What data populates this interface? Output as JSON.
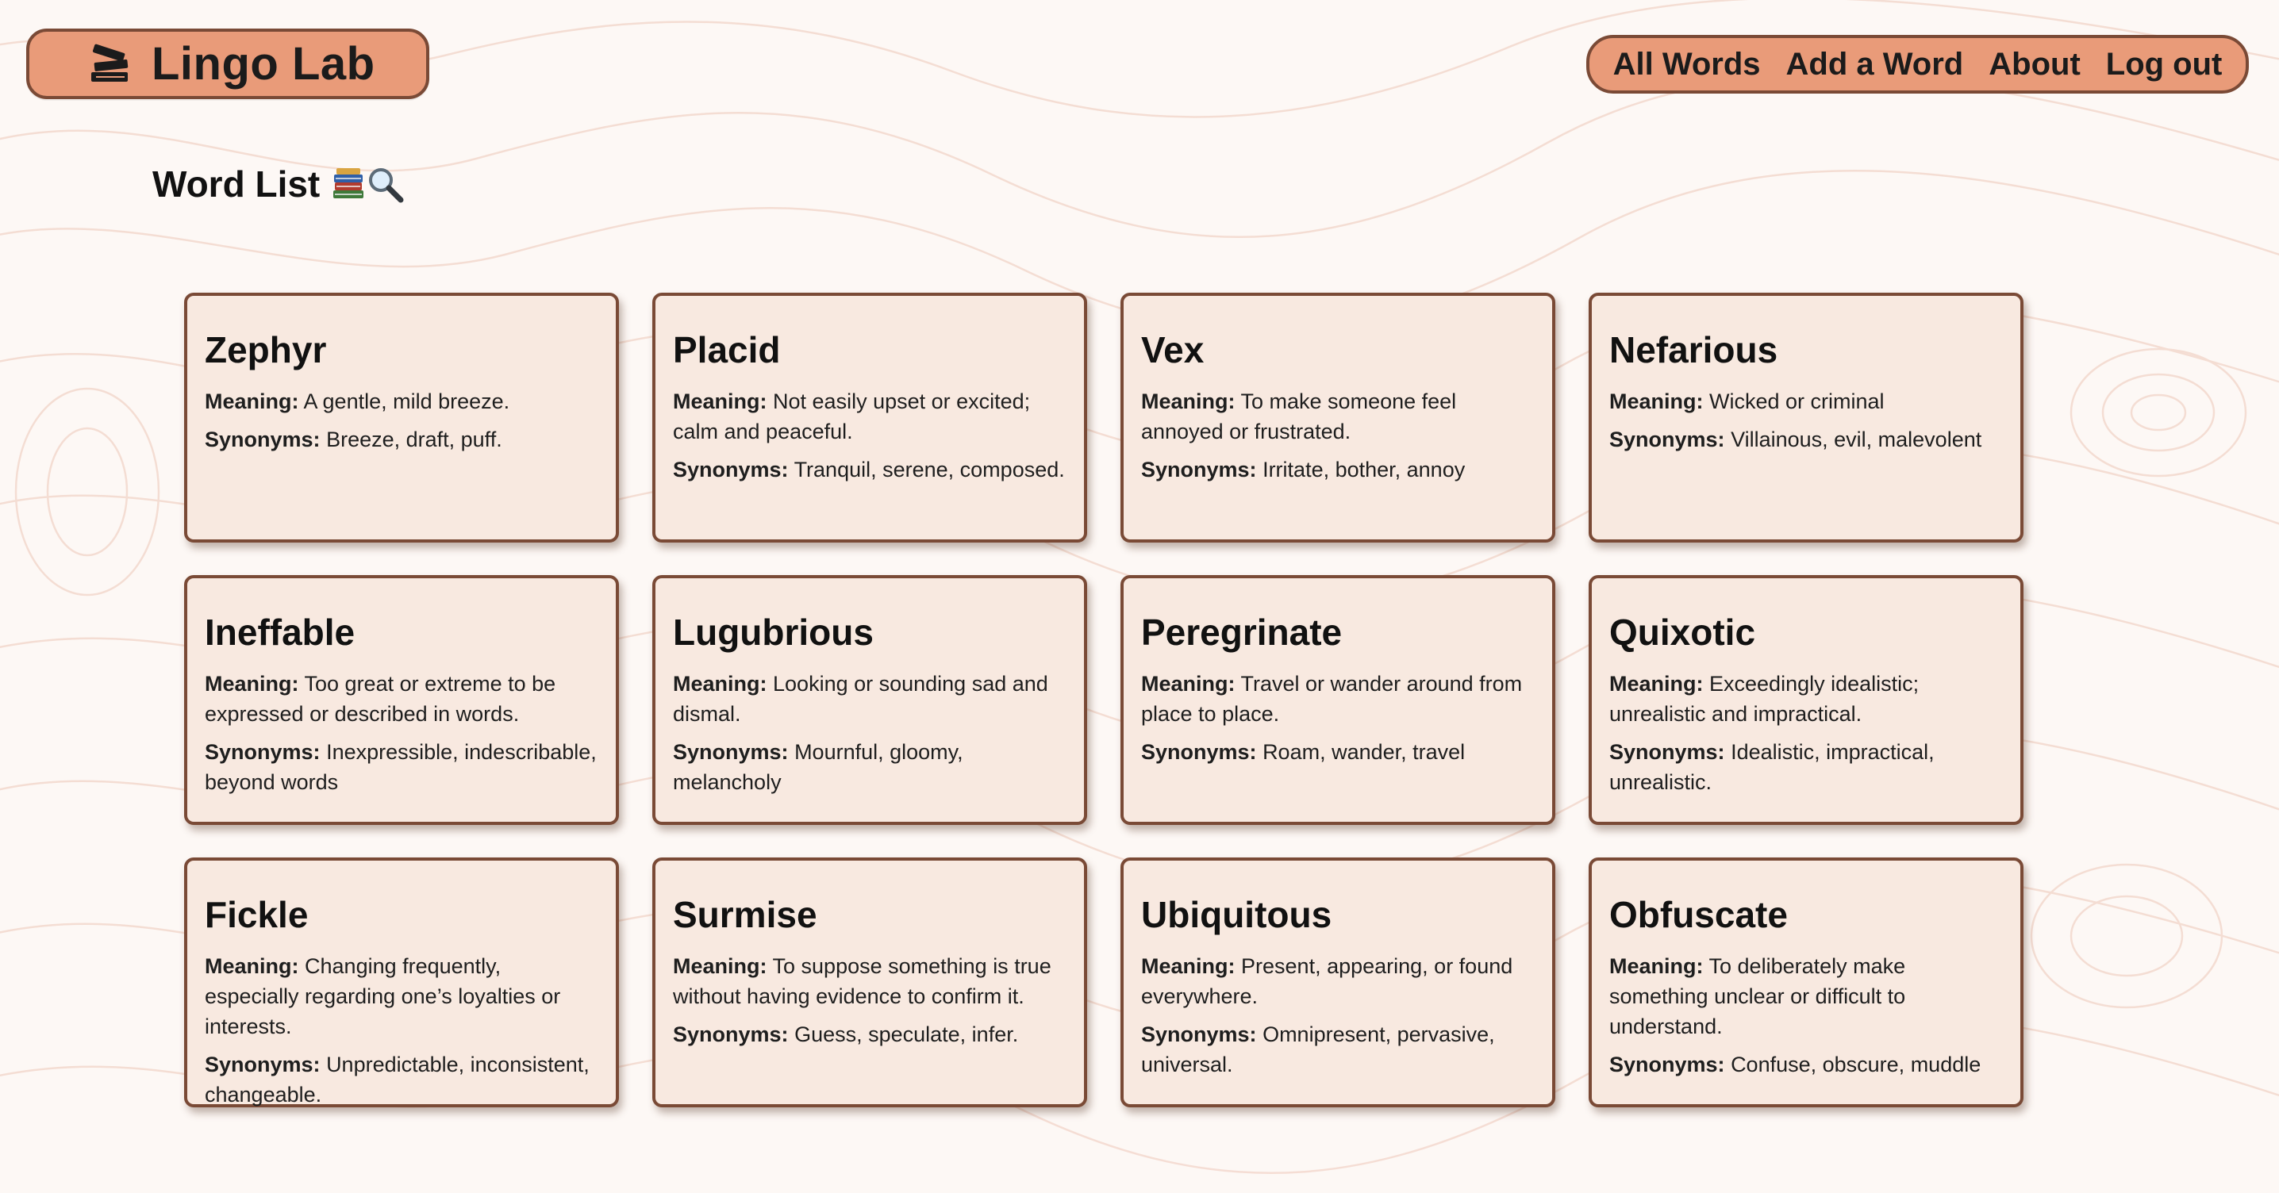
{
  "app": {
    "name": "Lingo Lab",
    "logo_icon": "books-icon"
  },
  "nav": {
    "items": [
      {
        "label": "All Words"
      },
      {
        "label": "Add a Word"
      },
      {
        "label": "About"
      },
      {
        "label": "Log out"
      }
    ]
  },
  "page": {
    "title": "Word List",
    "title_icons": [
      "books-icon",
      "magnifier-icon"
    ]
  },
  "labels": {
    "meaning": "Meaning:",
    "synonyms": "Synonyms:"
  },
  "colors": {
    "accent": "#e99b79",
    "border": "#7a4a36",
    "card_bg": "#f8e9e0",
    "page_bg": "#fdf8f5"
  },
  "words": [
    {
      "word": "Zephyr",
      "meaning": "A gentle, mild breeze.",
      "synonyms": "Breeze, draft, puff."
    },
    {
      "word": "Placid",
      "meaning": "Not easily upset or excited; calm and peaceful.",
      "synonyms": "Tranquil, serene, composed."
    },
    {
      "word": "Vex",
      "meaning": "To make someone feel annoyed or frustrated.",
      "synonyms": "Irritate, bother, annoy"
    },
    {
      "word": "Nefarious",
      "meaning": "Wicked or criminal",
      "synonyms": "Villainous, evil, malevolent"
    },
    {
      "word": "Ineffable",
      "meaning": "Too great or extreme to be expressed or described in words.",
      "synonyms": "Inexpressible, indescribable, beyond words"
    },
    {
      "word": "Lugubrious",
      "meaning": "Looking or sounding sad and dismal.",
      "synonyms": "Mournful, gloomy, melancholy"
    },
    {
      "word": "Peregrinate",
      "meaning": "Travel or wander around from place to place.",
      "synonyms": "Roam, wander, travel"
    },
    {
      "word": "Quixotic",
      "meaning": "Exceedingly idealistic; unrealistic and impractical.",
      "synonyms": "Idealistic, impractical, unrealistic."
    },
    {
      "word": "Fickle",
      "meaning": "Changing frequently, especially regarding one’s loyalties or interests.",
      "synonyms": "Unpredictable, inconsistent, changeable."
    },
    {
      "word": "Surmise",
      "meaning": "To suppose something is true without having evidence to confirm it.",
      "synonyms": "Guess, speculate, infer."
    },
    {
      "word": "Ubiquitous",
      "meaning": "Present, appearing, or found everywhere.",
      "synonyms": "Omnipresent, pervasive, universal."
    },
    {
      "word": "Obfuscate",
      "meaning": "To deliberately make something unclear or difficult to understand.",
      "synonyms": "Confuse, obscure, muddle"
    }
  ]
}
